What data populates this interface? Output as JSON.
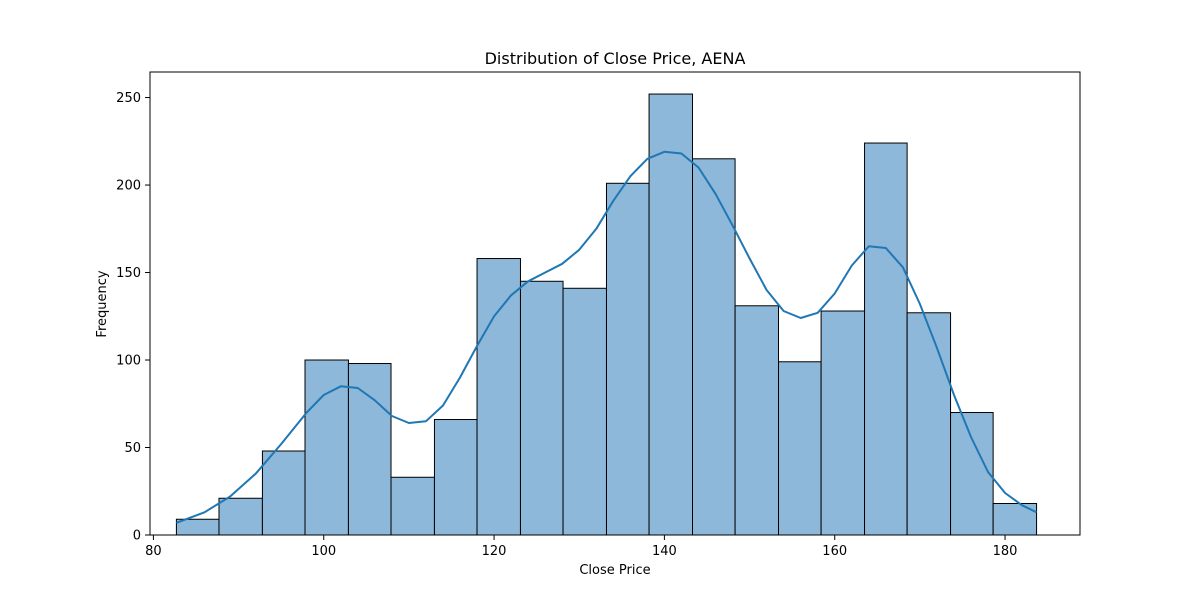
{
  "chart_data": {
    "type": "bar",
    "title": "Distribution of Close Price, AENA",
    "xlabel": "Close Price",
    "ylabel": "Frequency",
    "xlim": [
      79.6,
      188.8
    ],
    "ylim": [
      0,
      264.6
    ],
    "xticks": [
      80,
      100,
      120,
      140,
      160,
      180
    ],
    "yticks": [
      0,
      50,
      100,
      150,
      200,
      250
    ],
    "bins": [
      {
        "start": 82.7,
        "end": 87.7,
        "count": 9
      },
      {
        "start": 87.7,
        "end": 92.8,
        "count": 21
      },
      {
        "start": 92.8,
        "end": 97.8,
        "count": 48
      },
      {
        "start": 97.8,
        "end": 102.9,
        "count": 100
      },
      {
        "start": 102.9,
        "end": 107.9,
        "count": 98
      },
      {
        "start": 107.9,
        "end": 113.0,
        "count": 33
      },
      {
        "start": 113.0,
        "end": 118.0,
        "count": 66
      },
      {
        "start": 118.0,
        "end": 123.1,
        "count": 158
      },
      {
        "start": 123.1,
        "end": 128.1,
        "count": 145
      },
      {
        "start": 128.1,
        "end": 133.2,
        "count": 141
      },
      {
        "start": 133.2,
        "end": 138.2,
        "count": 201
      },
      {
        "start": 138.2,
        "end": 143.3,
        "count": 252
      },
      {
        "start": 143.3,
        "end": 148.3,
        "count": 215
      },
      {
        "start": 148.3,
        "end": 153.4,
        "count": 131
      },
      {
        "start": 153.4,
        "end": 158.4,
        "count": 99
      },
      {
        "start": 158.4,
        "end": 163.5,
        "count": 128
      },
      {
        "start": 163.5,
        "end": 168.5,
        "count": 224
      },
      {
        "start": 168.5,
        "end": 173.6,
        "count": 127
      },
      {
        "start": 173.6,
        "end": 178.6,
        "count": 70
      },
      {
        "start": 178.6,
        "end": 183.7,
        "count": 18
      }
    ],
    "kde": {
      "x": [
        82.7,
        86,
        89,
        92,
        95,
        98,
        100,
        102,
        104,
        106,
        108,
        110,
        112,
        114,
        116,
        118,
        120,
        122,
        124,
        126,
        128,
        130,
        132,
        134,
        136,
        138,
        140,
        142,
        144,
        146,
        148,
        150,
        152,
        154,
        156,
        158,
        160,
        162,
        164,
        166,
        168,
        170,
        172,
        174,
        176,
        178,
        180,
        182,
        183.7
      ],
      "y": [
        7,
        13,
        22,
        35,
        52,
        70,
        80,
        85,
        84,
        77,
        68,
        64,
        65,
        74,
        90,
        108,
        125,
        137,
        145,
        150,
        155,
        163,
        175,
        191,
        205,
        215,
        219,
        218,
        210,
        195,
        177,
        158,
        140,
        128,
        124,
        127,
        138,
        154,
        165,
        164,
        153,
        132,
        107,
        80,
        56,
        36,
        24,
        17,
        13
      ]
    },
    "colors": {
      "bar_fill": "#8db8da",
      "bar_edge": "#000000",
      "kde_line": "#1f77b4"
    },
    "grid": false,
    "legend": "none"
  }
}
